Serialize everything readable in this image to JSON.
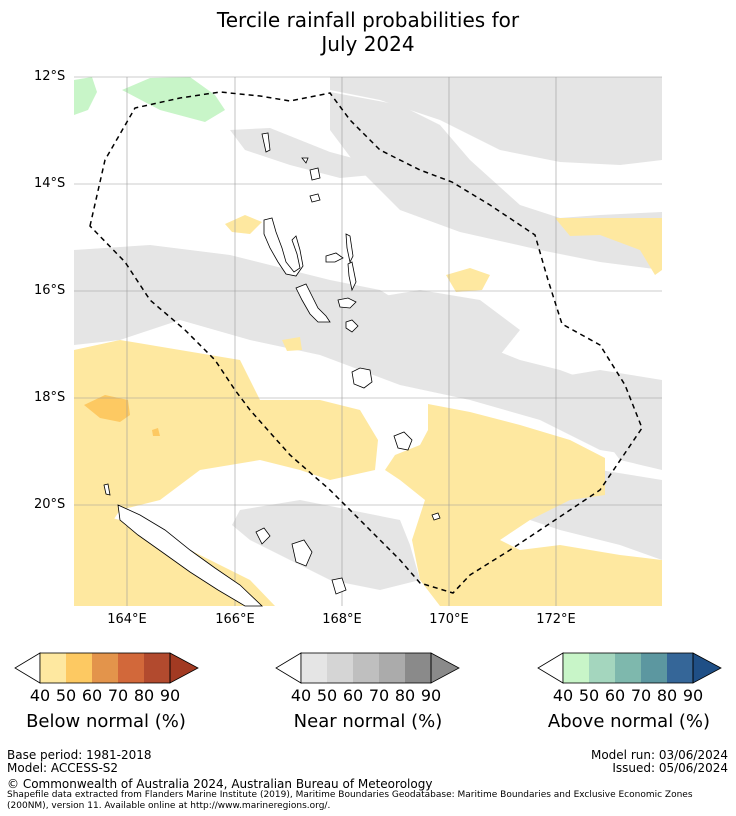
{
  "title_line1": "Tercile rainfall probabilities for",
  "title_line2": "July 2024",
  "lat_labels": [
    "12°S",
    "14°S",
    "16°S",
    "18°S",
    "20°S"
  ],
  "lon_labels": [
    "164°E",
    "166°E",
    "168°E",
    "170°E",
    "172°E"
  ],
  "colors": {
    "below": [
      "#fee8a0",
      "#fdc962",
      "#e3944b",
      "#d2683a",
      "#b24a2e",
      "#a23a22"
    ],
    "near": [
      "#e5e5e5",
      "#d5d5d5",
      "#bfbfbf",
      "#ababab",
      "#8a8a8a"
    ],
    "above": [
      "#c8f5c8",
      "#a4d6be",
      "#7eb8ad",
      "#5c97a0",
      "#356698",
      "#1f4f86"
    ],
    "map_grey": "#e5e5e5",
    "map_yellow": "#fee8a0",
    "map_orange": "#fdc962",
    "map_green": "#c8f5c8"
  },
  "colorbars": [
    {
      "label": "Below normal (%)",
      "ticks": [
        "40",
        "50",
        "60",
        "70",
        "80",
        "90"
      ]
    },
    {
      "label": "Near normal (%)",
      "ticks": [
        "40",
        "50",
        "60",
        "70",
        "80",
        "90"
      ]
    },
    {
      "label": "Above normal (%)",
      "ticks": [
        "40",
        "50",
        "60",
        "70",
        "80",
        "90"
      ]
    }
  ],
  "footer": {
    "base_period": "Base period: 1981-2018",
    "model": "Model: ACCESS-S2",
    "model_run": "Model run: 03/06/2024",
    "issued": "Issued: 05/06/2024",
    "copyright": "© Commonwealth of Australia 2024, Australian Bureau of Meteorology",
    "shapefile_line1": "Shapefile data extracted from Flanders Marine Institute (2019), Maritime Boundaries Geodatabase: Maritime Boundaries and Exclusive Economic Zones",
    "shapefile_line2": "(200NM), version 11. Available online at http://www.marineregions.org/."
  }
}
